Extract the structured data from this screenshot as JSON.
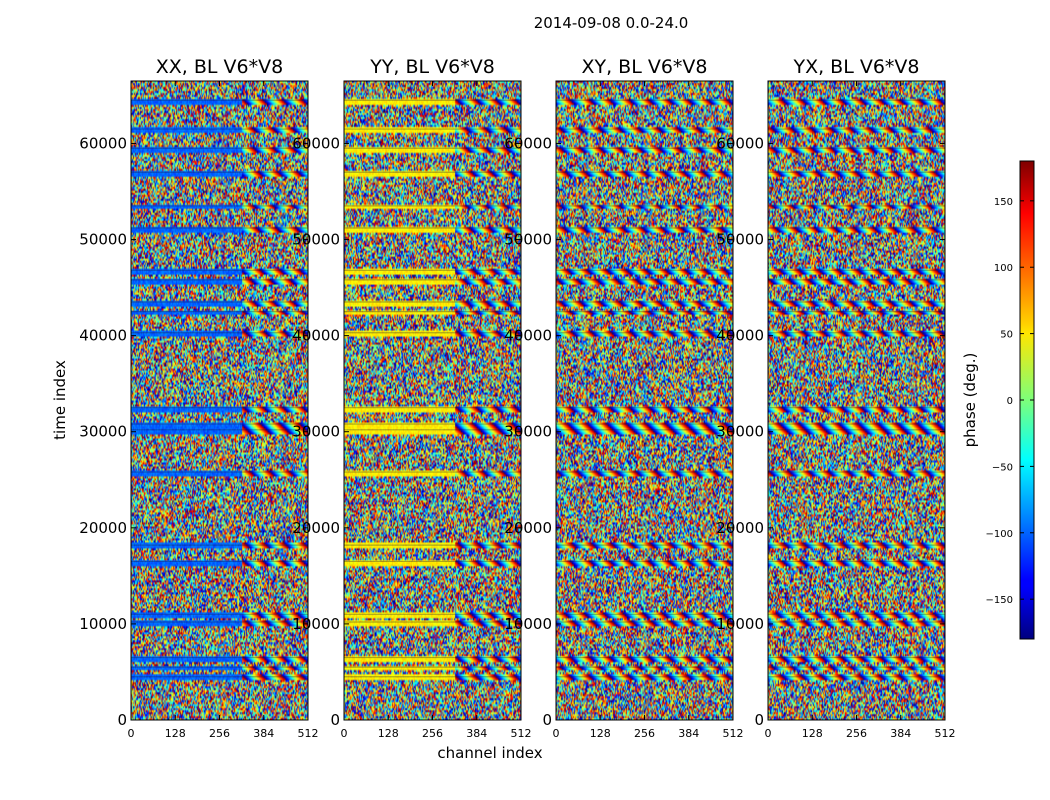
{
  "suptitle": "2014-09-08 0.0-24.0",
  "chart_data": {
    "type": "heatmap",
    "shared": {
      "xlabel": "channel index",
      "ylabel": "time index",
      "xlim": [
        0,
        512
      ],
      "ylim": [
        0,
        66500
      ],
      "x_ticks": [
        0,
        128,
        256,
        384,
        512
      ],
      "y_ticks": [
        0,
        10000,
        20000,
        30000,
        40000,
        50000,
        60000
      ],
      "colormap": "jet"
    },
    "panels": [
      {
        "title": "XX, BL V6*V8",
        "baseline_phase": -100,
        "coherent_channel_max": 320
      },
      {
        "title": "YY, BL V6*V8",
        "baseline_phase": 50,
        "coherent_channel_max": 320
      },
      {
        "title": "XY, BL V6*V8",
        "baseline_phase": 0,
        "coherent_channel_max": 0
      },
      {
        "title": "YX, BL V6*V8",
        "baseline_phase": 0,
        "coherent_channel_max": 0
      }
    ],
    "horizontal_bands_time_index": [
      4500,
      5500,
      6500,
      10200,
      11000,
      16500,
      18200,
      25800,
      30200,
      30800,
      32500,
      40300,
      42500,
      43500,
      45800,
      46800,
      51200,
      53500,
      57000,
      59500,
      61500,
      64500
    ],
    "colorbar": {
      "label": "phase (deg.)",
      "range": [
        -180,
        180
      ],
      "ticks": [
        -150,
        -100,
        -50,
        0,
        50,
        100,
        150
      ]
    }
  }
}
